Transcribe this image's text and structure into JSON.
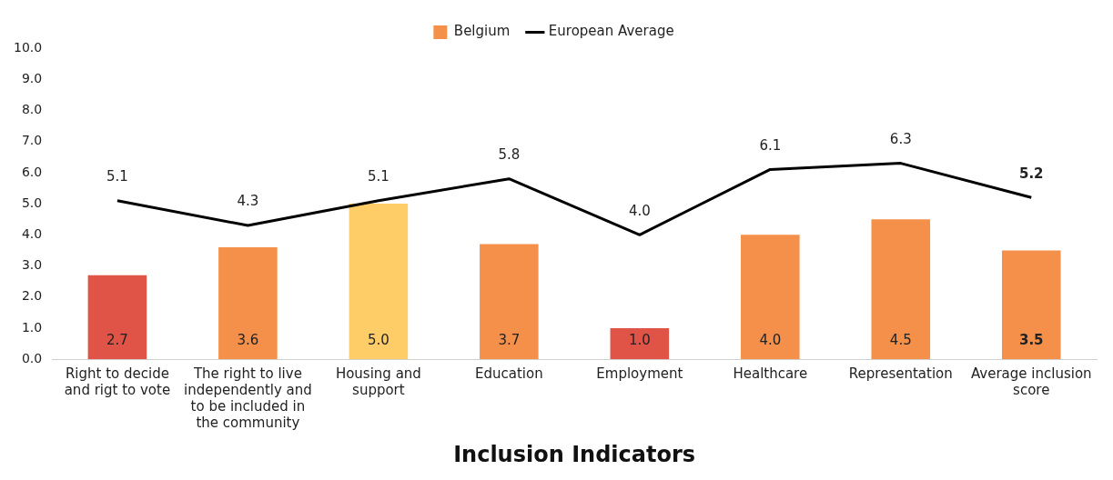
{
  "chart_data": {
    "type": "bar",
    "xlabel": "Inclusion Indicators",
    "categories": [
      "Right to decide and rigt to vote",
      "The right to live independently and to be included in the community",
      "Housing and support",
      "Education",
      "Employment",
      "Healthcare",
      "Representation",
      "Average inclusion score"
    ],
    "series": [
      {
        "name": "Belgium",
        "color": "#f5904b",
        "colors": [
          "#e05347",
          "#f5904b",
          "#fecd67",
          "#f5904b",
          "#e05347",
          "#f5904b",
          "#f5904b",
          "#f5904b"
        ],
        "values": [
          2.7,
          3.6,
          5.0,
          3.7,
          1.0,
          4.0,
          4.5,
          3.5
        ],
        "value_labels": [
          "2.7",
          "3.6",
          "5.0",
          "3.7",
          "1.0",
          "4.0",
          "4.5",
          "3.5"
        ]
      },
      {
        "name": "European Average",
        "type": "line",
        "color": "#000000",
        "values": [
          5.1,
          4.3,
          5.1,
          5.8,
          4.0,
          6.1,
          6.3,
          5.2
        ],
        "value_labels": [
          "5.1",
          "4.3",
          "5.1",
          "5.8",
          "4.0",
          "6.1",
          "6.3",
          "5.2"
        ]
      }
    ],
    "ylim": [
      0,
      10
    ],
    "yticks": [
      {
        "value": 0,
        "label": "0.0"
      },
      {
        "value": 1,
        "label": "1.0"
      },
      {
        "value": 2,
        "label": "2.0"
      },
      {
        "value": 3,
        "label": "3.0"
      },
      {
        "value": 4,
        "label": "4.0"
      },
      {
        "value": 5,
        "label": "5.0"
      },
      {
        "value": 6,
        "label": "6.0"
      },
      {
        "value": 7,
        "label": "7.0"
      },
      {
        "value": 8,
        "label": "8.0"
      },
      {
        "value": 9,
        "label": "9.0"
      },
      {
        "value": 10,
        "label": "10.0"
      }
    ],
    "grid": false,
    "legend": "top",
    "marker": "none"
  }
}
